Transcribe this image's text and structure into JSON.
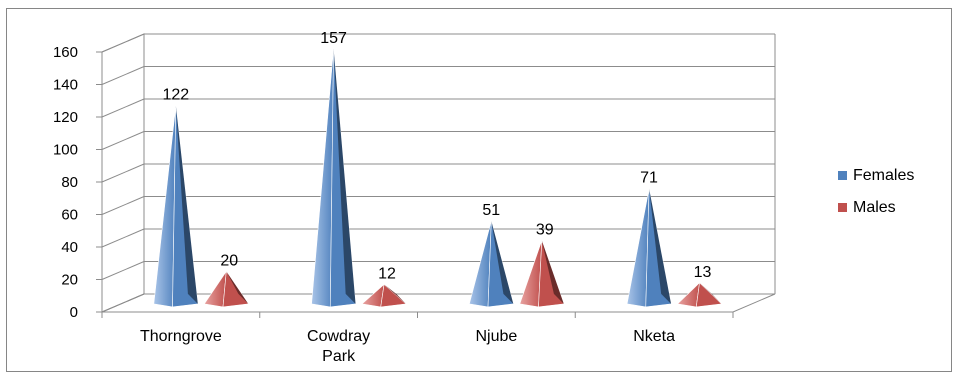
{
  "chart_data": {
    "type": "bar",
    "subtype": "3d-pyramid",
    "categories": [
      "Thorngrove",
      "Cowdray Park",
      "Njube",
      "Nketa"
    ],
    "series": [
      {
        "name": "Females",
        "values": [
          122,
          157,
          51,
          71
        ],
        "color": "#4f81bd"
      },
      {
        "name": "Males",
        "values": [
          20,
          12,
          39,
          13
        ],
        "color": "#c0504d"
      }
    ],
    "title": "",
    "xlabel": "",
    "ylabel": "",
    "ylim": [
      0,
      160
    ],
    "yticks": [
      0,
      20,
      40,
      60,
      80,
      100,
      120,
      140,
      160
    ],
    "grid": true,
    "legend": "right"
  }
}
